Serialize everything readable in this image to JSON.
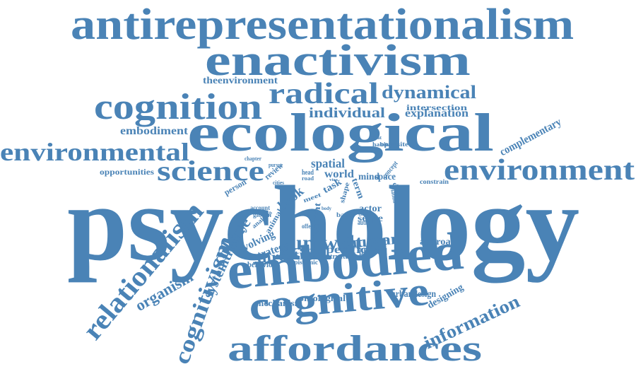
{
  "color": "#4a83b6",
  "words": [
    {
      "text": "antirepresentationalism"
    },
    {
      "text": "enactivism"
    },
    {
      "text": "radical"
    },
    {
      "text": "dynamical"
    },
    {
      "text": "cognition"
    },
    {
      "text": "theenvironment"
    },
    {
      "text": "individual"
    },
    {
      "text": "intersection"
    },
    {
      "text": "explanation"
    },
    {
      "text": "embodiment"
    },
    {
      "text": "ecological"
    },
    {
      "text": "complementary"
    },
    {
      "text": "environmental"
    },
    {
      "text": "opposite"
    },
    {
      "text": "habitat"
    },
    {
      "text": "threat"
    },
    {
      "text": "science"
    },
    {
      "text": "chapter"
    },
    {
      "text": "pursue"
    },
    {
      "text": "spatial"
    },
    {
      "text": "environment"
    },
    {
      "text": "opportunities"
    },
    {
      "text": "review"
    },
    {
      "text": "head"
    },
    {
      "text": "world"
    },
    {
      "text": "mind"
    },
    {
      "text": "space"
    },
    {
      "text": "concept"
    },
    {
      "text": "constrain"
    },
    {
      "text": "road"
    },
    {
      "text": "cities"
    },
    {
      "text": "task"
    },
    {
      "text": "visa"
    },
    {
      "text": "different"
    },
    {
      "text": "person"
    },
    {
      "text": "term"
    },
    {
      "text": "relation"
    },
    {
      "text": "psychology"
    },
    {
      "text": "account"
    },
    {
      "text": "gibson"
    },
    {
      "text": "animal"
    },
    {
      "text": "book"
    },
    {
      "text": "meet"
    },
    {
      "text": "content"
    },
    {
      "text": "body"
    },
    {
      "text": "shape"
    },
    {
      "text": "basic"
    },
    {
      "text": "actor"
    },
    {
      "text": "third"
    },
    {
      "text": "sense"
    },
    {
      "text": "author"
    },
    {
      "text": "offer"
    },
    {
      "text": "analysis"
    },
    {
      "text": "culture"
    },
    {
      "text": "umwelt"
    },
    {
      "text": "human"
    },
    {
      "text": "approach"
    },
    {
      "text": "relationalism"
    },
    {
      "text": "systemtheory"
    },
    {
      "text": "evolving"
    },
    {
      "text": "strategy"
    },
    {
      "text": "direction"
    },
    {
      "text": "specific"
    },
    {
      "text": "physical"
    },
    {
      "text": "structure"
    },
    {
      "text": "behavior"
    },
    {
      "text": "epistemic"
    },
    {
      "text": "embodied"
    },
    {
      "text": "cognitivism"
    },
    {
      "text": "organism"
    },
    {
      "text": "urbandesign"
    },
    {
      "text": "information"
    },
    {
      "text": "designing"
    },
    {
      "text": "mechanism"
    },
    {
      "text": "ontological"
    },
    {
      "text": "cognitive"
    },
    {
      "text": "affordances"
    }
  ]
}
